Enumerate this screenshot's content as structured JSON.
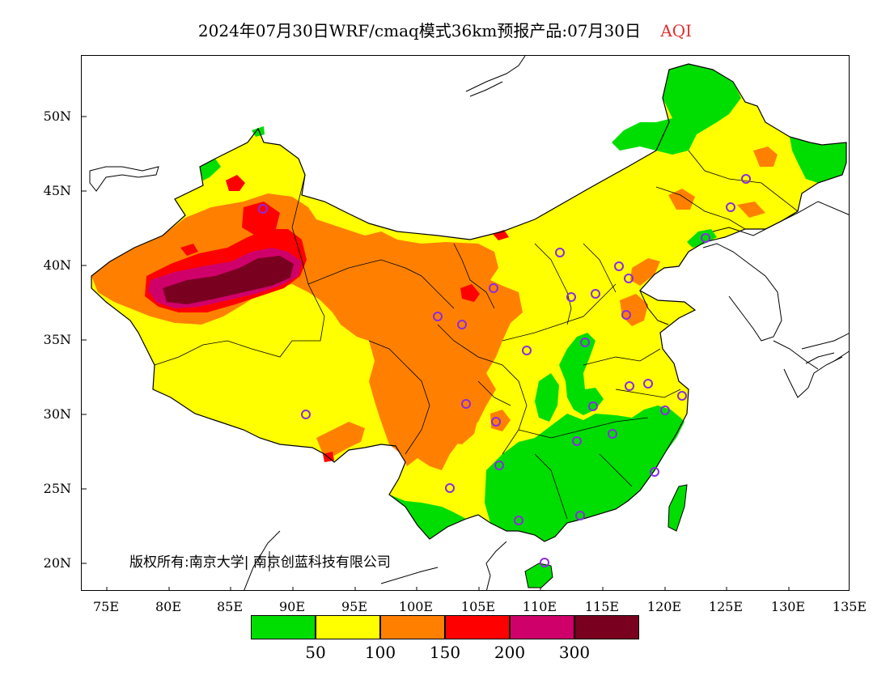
{
  "title": {
    "main": "2024年07月30日WRF/cmaq模式36km预报产品:07月30日",
    "variable": "AQI"
  },
  "copyright": "版权所有:南京大学| 南京创蓝科技有限公司",
  "axes": {
    "lat_ticks": [
      "50N",
      "45N",
      "40N",
      "35N",
      "30N",
      "25N",
      "20N"
    ],
    "lon_ticks": [
      "75E",
      "80E",
      "85E",
      "90E",
      "95E",
      "100E",
      "105E",
      "110E",
      "115E",
      "120E",
      "125E",
      "130E",
      "135E"
    ],
    "lon_range": [
      73,
      135
    ],
    "lat_range": [
      18,
      54
    ]
  },
  "legend": {
    "colors": [
      "#00dd00",
      "#ffff00",
      "#ff8000",
      "#ff0000",
      "#d0006a",
      "#7a0020"
    ],
    "labels": [
      "50",
      "100",
      "150",
      "200",
      "300"
    ]
  },
  "colors": {
    "good": "#00dd00",
    "moderate": "#ffff00",
    "unhealthy_sensitive": "#ff8000",
    "unhealthy": "#ff0000",
    "very_unhealthy": "#d0006a",
    "hazardous": "#7a0020",
    "station_marker": "#8a2be2"
  }
}
